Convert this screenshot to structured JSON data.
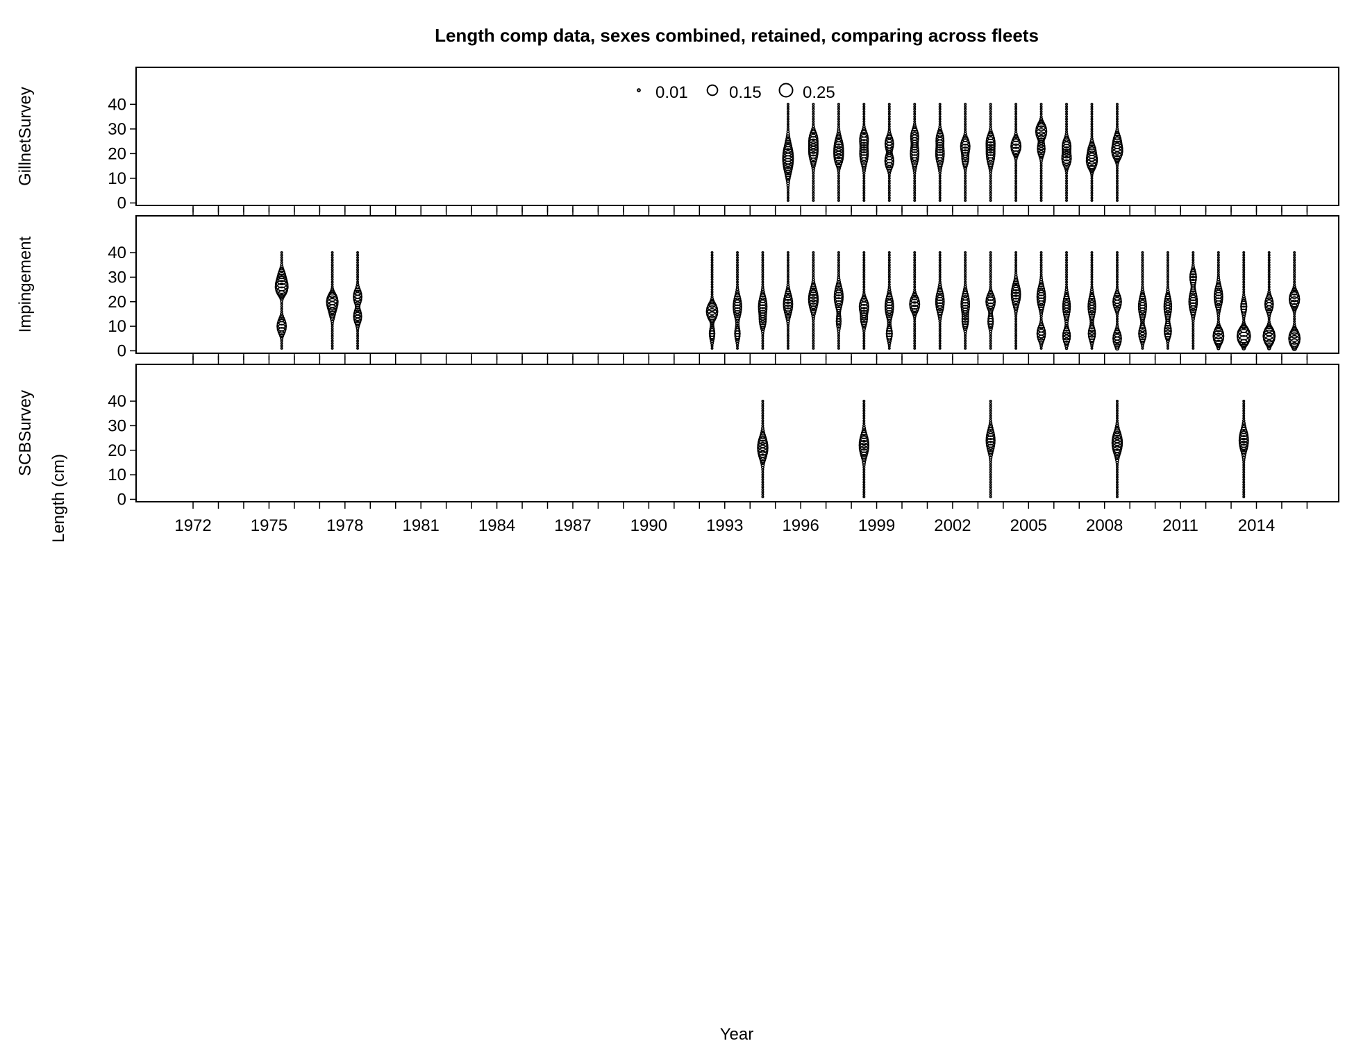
{
  "chart_data": {
    "type": "scatter",
    "title": "Length comp data, sexes combined, retained, comparing across fleets",
    "xlabel": "Year",
    "ylabel": "Length (cm)",
    "xlim": [
      1969.75,
      2017.25
    ],
    "x_tick_labels": [
      1972,
      1975,
      1978,
      1981,
      1984,
      1987,
      1990,
      1993,
      1996,
      1999,
      2002,
      2005,
      2008,
      2011,
      2014
    ],
    "x_minor_ticks": [
      1972,
      1973,
      1974,
      1975,
      1976,
      1977,
      1978,
      1979,
      1980,
      1981,
      1982,
      1983,
      1984,
      1985,
      1986,
      1987,
      1988,
      1989,
      1990,
      1991,
      1992,
      1993,
      1994,
      1995,
      1996,
      1997,
      1998,
      1999,
      2000,
      2001,
      2002,
      2003,
      2004,
      2005,
      2006,
      2007,
      2008,
      2009,
      2010,
      2011,
      2012,
      2013,
      2014,
      2015,
      2016
    ],
    "ylim": [
      -1,
      55
    ],
    "y_ticks": [
      0,
      10,
      20,
      30,
      40
    ],
    "length_bins": {
      "min": 1,
      "max": 40,
      "step": 1
    },
    "bubble_legend": {
      "values": [
        0.01,
        0.15,
        0.25
      ],
      "labels": [
        "0.01",
        "0.15",
        "0.25"
      ],
      "placement": "top-center of first panel"
    },
    "panels": [
      {
        "name": "GillnetSurvey",
        "years": [
          {
            "year": 1995.5,
            "modes": [
              [
                18,
                4,
                0.16
              ]
            ]
          },
          {
            "year": 1996.5,
            "modes": [
              [
                21,
                3,
                0.12
              ],
              [
                26,
                2,
                0.08
              ]
            ]
          },
          {
            "year": 1997.5,
            "modes": [
              [
                22,
                3,
                0.12
              ],
              [
                18,
                2,
                0.06
              ]
            ]
          },
          {
            "year": 1998.5,
            "modes": [
              [
                20,
                3,
                0.1
              ],
              [
                26,
                2,
                0.09
              ]
            ]
          },
          {
            "year": 1999.5,
            "modes": [
              [
                17,
                2,
                0.11
              ],
              [
                24,
                2,
                0.1
              ]
            ]
          },
          {
            "year": 2000.5,
            "modes": [
              [
                20,
                3,
                0.1
              ],
              [
                27,
                2,
                0.08
              ]
            ]
          },
          {
            "year": 2001.5,
            "modes": [
              [
                20,
                3,
                0.1
              ],
              [
                26,
                2,
                0.07
              ]
            ]
          },
          {
            "year": 2002.5,
            "modes": [
              [
                23,
                2,
                0.12
              ],
              [
                18,
                2,
                0.06
              ]
            ]
          },
          {
            "year": 2003.5,
            "modes": [
              [
                20,
                3,
                0.1
              ],
              [
                25,
                2,
                0.08
              ]
            ]
          },
          {
            "year": 2004.5,
            "modes": [
              [
                23,
                2,
                0.14
              ]
            ]
          },
          {
            "year": 2005.5,
            "modes": [
              [
                29,
                2,
                0.17
              ],
              [
                22,
                2,
                0.08
              ]
            ]
          },
          {
            "year": 2006.5,
            "modes": [
              [
                18,
                2,
                0.12
              ],
              [
                23,
                2,
                0.1
              ]
            ]
          },
          {
            "year": 2007.5,
            "modes": [
              [
                17,
                2,
                0.16
              ],
              [
                21,
                2,
                0.08
              ]
            ]
          },
          {
            "year": 2008.5,
            "modes": [
              [
                21,
                2,
                0.16
              ],
              [
                25,
                2,
                0.08
              ]
            ]
          }
        ]
      },
      {
        "name": "Impingement",
        "years": [
          {
            "year": 1975.5,
            "modes": [
              [
                26,
                2,
                0.22
              ],
              [
                10,
                2,
                0.12
              ],
              [
                30,
                2,
                0.08
              ]
            ]
          },
          {
            "year": 1977.5,
            "modes": [
              [
                20,
                2,
                0.18
              ],
              [
                16,
                2,
                0.05
              ]
            ]
          },
          {
            "year": 1978.5,
            "modes": [
              [
                22,
                2,
                0.1
              ],
              [
                14,
                2,
                0.09
              ]
            ]
          },
          {
            "year": 1992.5,
            "modes": [
              [
                16,
                2,
                0.18
              ],
              [
                7,
                2,
                0.04
              ]
            ]
          },
          {
            "year": 1993.5,
            "modes": [
              [
                18,
                3,
                0.1
              ],
              [
                7,
                2,
                0.04
              ]
            ]
          },
          {
            "year": 1994.5,
            "modes": [
              [
                18,
                3,
                0.1
              ],
              [
                12,
                2,
                0.05
              ]
            ]
          },
          {
            "year": 1995.5,
            "modes": [
              [
                19,
                3,
                0.12
              ]
            ]
          },
          {
            "year": 1996.5,
            "modes": [
              [
                21,
                3,
                0.13
              ]
            ]
          },
          {
            "year": 1997.5,
            "modes": [
              [
                22,
                3,
                0.11
              ],
              [
                12,
                2,
                0.03
              ]
            ]
          },
          {
            "year": 1998.5,
            "modes": [
              [
                18,
                2,
                0.12
              ],
              [
                13,
                2,
                0.06
              ]
            ]
          },
          {
            "year": 1999.5,
            "modes": [
              [
                18,
                3,
                0.1
              ],
              [
                7,
                2,
                0.05
              ]
            ]
          },
          {
            "year": 2000.5,
            "modes": [
              [
                19,
                2,
                0.14
              ]
            ]
          },
          {
            "year": 2001.5,
            "modes": [
              [
                20,
                3,
                0.1
              ]
            ]
          },
          {
            "year": 2002.5,
            "modes": [
              [
                19,
                3,
                0.1
              ],
              [
                12,
                2,
                0.05
              ]
            ]
          },
          {
            "year": 2003.5,
            "modes": [
              [
                20,
                2,
                0.12
              ],
              [
                12,
                2,
                0.04
              ]
            ]
          },
          {
            "year": 2004.5,
            "modes": [
              [
                23,
                3,
                0.12
              ]
            ]
          },
          {
            "year": 2005.5,
            "modes": [
              [
                22,
                3,
                0.1
              ],
              [
                7,
                2,
                0.1
              ]
            ]
          },
          {
            "year": 2006.5,
            "modes": [
              [
                18,
                3,
                0.08
              ],
              [
                6,
                2,
                0.08
              ]
            ]
          },
          {
            "year": 2007.5,
            "modes": [
              [
                18,
                3,
                0.08
              ],
              [
                7,
                2,
                0.07
              ]
            ]
          },
          {
            "year": 2008.5,
            "modes": [
              [
                20,
                2,
                0.1
              ],
              [
                5,
                2,
                0.1
              ]
            ]
          },
          {
            "year": 2009.5,
            "modes": [
              [
                18,
                3,
                0.09
              ],
              [
                7,
                2,
                0.08
              ]
            ]
          },
          {
            "year": 2010.5,
            "modes": [
              [
                18,
                3,
                0.08
              ],
              [
                8,
                2,
                0.07
              ]
            ]
          },
          {
            "year": 2011.5,
            "modes": [
              [
                20,
                3,
                0.1
              ],
              [
                30,
                2,
                0.06
              ]
            ]
          },
          {
            "year": 2012.5,
            "modes": [
              [
                22,
                3,
                0.1
              ],
              [
                6,
                2,
                0.16
              ]
            ]
          },
          {
            "year": 2013.5,
            "modes": [
              [
                6,
                2,
                0.25
              ],
              [
                18,
                2,
                0.05
              ]
            ]
          },
          {
            "year": 2014.5,
            "modes": [
              [
                6,
                2,
                0.2
              ],
              [
                19,
                2,
                0.1
              ]
            ]
          },
          {
            "year": 2015.5,
            "modes": [
              [
                5,
                2,
                0.18
              ],
              [
                21,
                2,
                0.15
              ]
            ]
          }
        ]
      },
      {
        "name": "SCBSurvey",
        "years": [
          {
            "year": 1994.5,
            "modes": [
              [
                21,
                3,
                0.15
              ]
            ]
          },
          {
            "year": 1998.5,
            "modes": [
              [
                22,
                3,
                0.13
              ]
            ]
          },
          {
            "year": 2003.5,
            "modes": [
              [
                24,
                3,
                0.11
              ]
            ]
          },
          {
            "year": 2008.5,
            "modes": [
              [
                23,
                3,
                0.15
              ]
            ]
          },
          {
            "year": 2013.5,
            "modes": [
              [
                24,
                3,
                0.12
              ]
            ]
          }
        ]
      }
    ]
  }
}
